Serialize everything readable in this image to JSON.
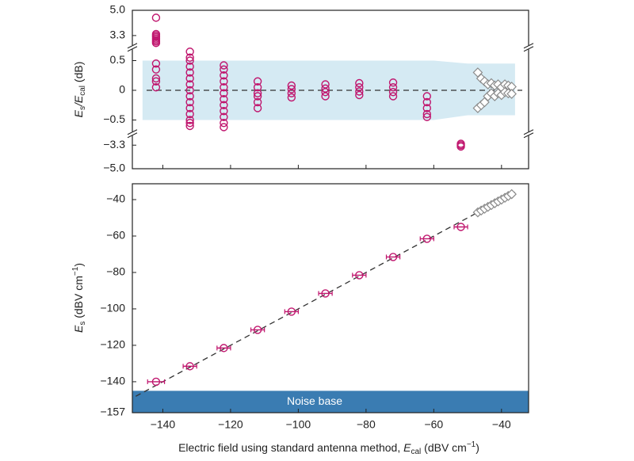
{
  "chart_data": [
    {
      "type": "scatter",
      "ylabel": [
        "E",
        "s",
        "/E",
        "cal",
        " (dB)"
      ],
      "xlim": [
        -149,
        -32
      ],
      "xticks": [
        -140,
        -120,
        -100,
        -80,
        -60,
        -40
      ],
      "ylim_segments": [
        [
          -5.0,
          -2.6
        ],
        [
          -0.7,
          0.7
        ],
        [
          2.6,
          5.0
        ]
      ],
      "yticks": [
        {
          "value": 5.0,
          "label": "5.0"
        },
        3.3,
        0.5,
        0,
        {
          "value": -0.5,
          "label": "−0.5"
        },
        {
          "value": -3.3,
          "label": "−3.3"
        },
        {
          "value": -5.0,
          "label": "−5.0"
        }
      ],
      "reference_line": 0,
      "band": {
        "color": "#d5eaf3",
        "x": [
          -146,
          -60,
          -50,
          -36
        ],
        "upper": [
          0.5,
          0.5,
          0.45,
          0.45
        ],
        "lower": [
          -0.5,
          -0.5,
          -0.42,
          -0.42
        ]
      },
      "series": [
        {
          "color": "#c0166e",
          "marker": "circle",
          "x": [
            -142,
            -142,
            -142,
            -142,
            -142,
            -142,
            -142,
            -142,
            -142,
            -142,
            -142,
            -142,
            -142,
            -132,
            -132,
            -132,
            -132,
            -132,
            -132,
            -132,
            -132,
            -132,
            -132,
            -132,
            -132,
            -132,
            -132,
            -132,
            -122,
            -122,
            -122,
            -122,
            -122,
            -122,
            -122,
            -122,
            -122,
            -122,
            -122,
            -122,
            -112,
            -112,
            -112,
            -112,
            -112,
            -112,
            -102,
            -102,
            -102,
            -102,
            -92,
            -92,
            -92,
            -92,
            -82,
            -82,
            -82,
            -82,
            -72,
            -72,
            -72,
            -72,
            -62,
            -62,
            -62,
            -62,
            -62,
            -52,
            -52,
            -52
          ],
          "values": [
            4.5,
            3.4,
            3.3,
            3.2,
            3.1,
            3.0,
            2.9,
            2.8,
            0.45,
            0.35,
            0.2,
            0.15,
            0.05,
            0.65,
            0.55,
            0.5,
            0.4,
            0.3,
            0.2,
            0.1,
            0,
            -0.1,
            -0.2,
            -0.3,
            -0.4,
            -0.5,
            -0.55,
            -0.6,
            0.42,
            0.35,
            0.25,
            0.15,
            0.05,
            -0.05,
            -0.15,
            -0.25,
            -0.35,
            -0.45,
            -0.55,
            -0.62,
            0.15,
            0.05,
            -0.05,
            -0.1,
            -0.2,
            -0.3,
            0.08,
            0.02,
            -0.05,
            -0.12,
            0.1,
            0.03,
            -0.03,
            -0.1,
            0.12,
            0.05,
            -0.02,
            -0.08,
            0.13,
            0.05,
            -0.03,
            -0.1,
            -0.1,
            -0.2,
            -0.3,
            -0.4,
            -0.45,
            -3.2,
            -3.3,
            -3.4
          ]
        },
        {
          "color": "#8a8a8a",
          "marker": "diamond",
          "x": [
            -47,
            -47,
            -46,
            -46,
            -45,
            -45,
            -44,
            -44,
            -43,
            -43,
            -42,
            -42,
            -41,
            -41,
            -40,
            -40,
            -39,
            -39,
            -38,
            -38,
            -37,
            -37
          ],
          "values": [
            0.3,
            -0.3,
            0.2,
            -0.25,
            0.15,
            -0.2,
            0.1,
            -0.1,
            0.12,
            -0.05,
            0.08,
            -0.1,
            0.1,
            -0.05,
            0.05,
            -0.08,
            0.1,
            -0.03,
            0.08,
            -0.05,
            0.06,
            -0.06
          ]
        }
      ]
    },
    {
      "type": "errorbar",
      "xlabel": [
        "Electric field using standard antenna method, ",
        "E",
        "cal",
        " (dBV cm",
        "−1",
        ")"
      ],
      "ylabel": [
        "E",
        "s",
        " (dBV cm",
        "−1",
        ")"
      ],
      "xlim": [
        -149,
        -32
      ],
      "xticks": [
        {
          "value": -140,
          "label": "−140"
        },
        {
          "value": -120,
          "label": "−120"
        },
        {
          "value": -100,
          "label": "−100"
        },
        {
          "value": -80,
          "label": "−80"
        },
        {
          "value": -60,
          "label": "−60"
        },
        {
          "value": -40,
          "label": "−40"
        }
      ],
      "ylim": [
        -157,
        -31.3
      ],
      "yticks": [
        {
          "value": -40,
          "label": "−40"
        },
        {
          "value": -60,
          "label": "−60"
        },
        {
          "value": -80,
          "label": "−80"
        },
        {
          "value": -100,
          "label": "−100"
        },
        {
          "value": -120,
          "label": "−120"
        },
        {
          "value": -140,
          "label": "−140"
        },
        {
          "value": -157,
          "label": "−157"
        }
      ],
      "noise_band": {
        "label": "Noise base",
        "ylim": [
          -157,
          -145
        ],
        "color": "#3a7cb2"
      },
      "fit_line": {
        "x": [
          -148,
          -36
        ],
        "values": [
          -148,
          -36
        ]
      },
      "series": [
        {
          "color": "#c0166e",
          "marker": "circle",
          "x": [
            -142,
            -132,
            -122,
            -112,
            -102,
            -92,
            -82,
            -72,
            -62,
            -52
          ],
          "values": [
            -140,
            -131.5,
            -121.5,
            -111.5,
            -101.5,
            -91.5,
            -81.5,
            -71.5,
            -61.5,
            -55
          ],
          "xerr": [
            2.5,
            2,
            2,
            2,
            2,
            2,
            2,
            2,
            2,
            2
          ]
        },
        {
          "color": "#8a8a8a",
          "marker": "diamond",
          "x": [
            -47,
            -46,
            -45,
            -44,
            -43,
            -42,
            -41,
            -40,
            -39,
            -38,
            -37
          ],
          "values": [
            -47,
            -46,
            -45,
            -44,
            -43,
            -42,
            -41,
            -40,
            -39,
            -38,
            -37
          ]
        }
      ]
    }
  ]
}
